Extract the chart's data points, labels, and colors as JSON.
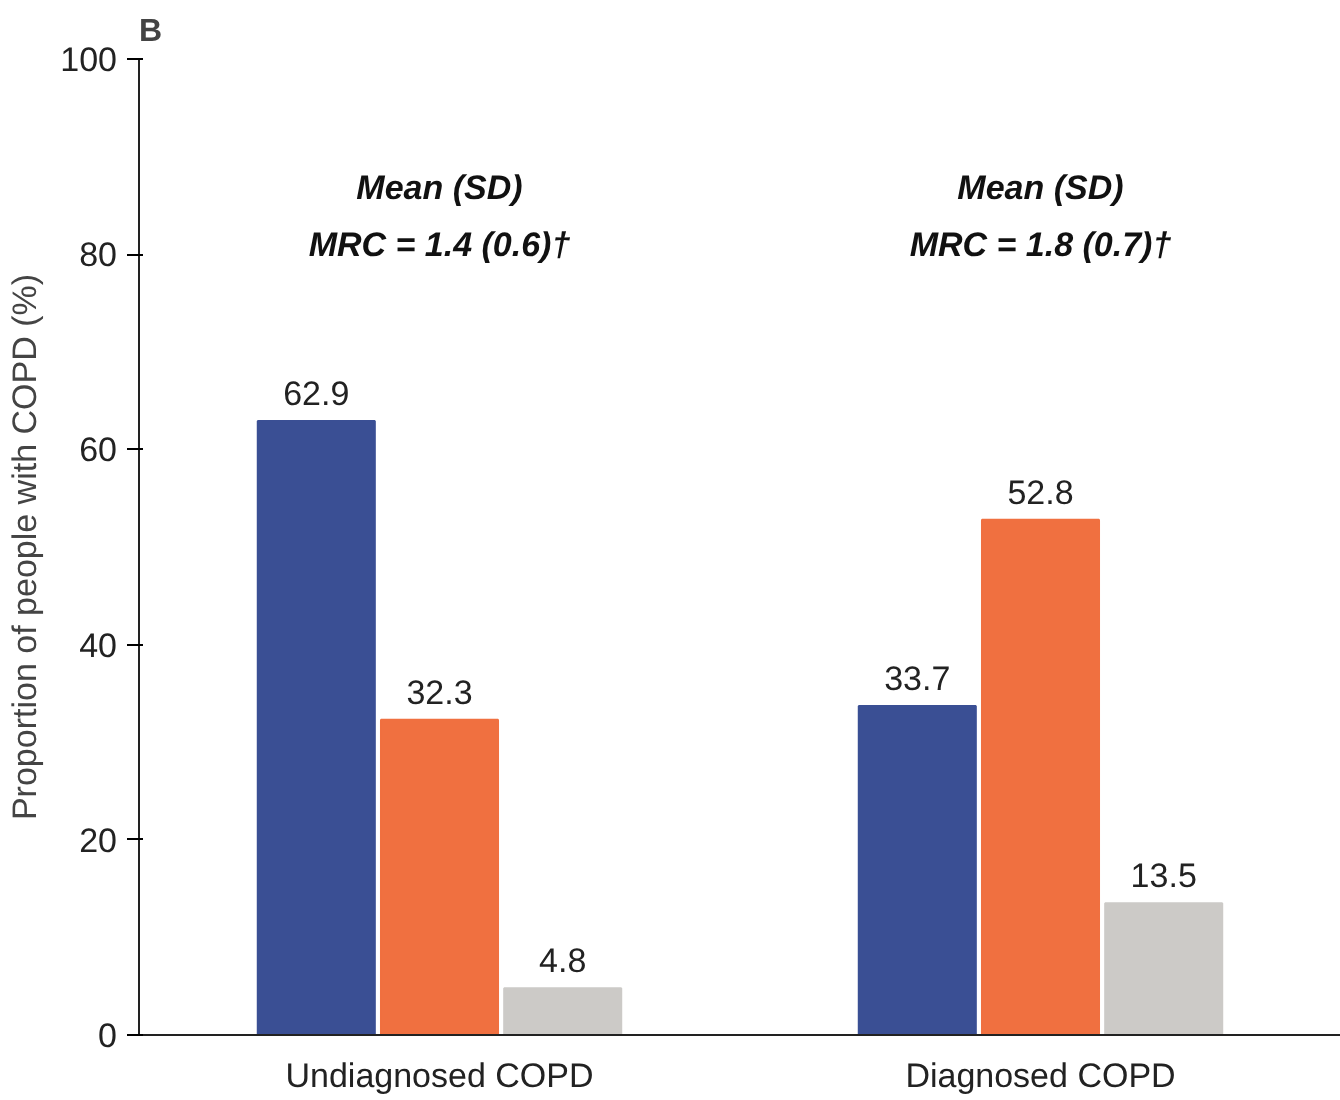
{
  "chart_data": {
    "type": "bar",
    "title": "B",
    "ylabel": "Proportion of people with COPD (%)",
    "categories": [
      "Undiagnosed COPD",
      "Diagnosed COPD"
    ],
    "series": [
      {
        "color": "#3a4f94",
        "values": [
          62.9,
          33.7
        ]
      },
      {
        "color": "#f07040",
        "values": [
          32.3,
          52.8
        ]
      },
      {
        "color": "#cccac7",
        "values": [
          4.8,
          13.5
        ]
      }
    ],
    "ylim": [
      0,
      100
    ],
    "yticks": [
      0,
      20,
      40,
      60,
      80,
      100
    ],
    "data_labels": true,
    "annotations": [
      "Mean (SD)\nMRC = 1.4 (0.6)†",
      "Mean (SD)\nMRC = 1.8 (0.7)†"
    ]
  }
}
